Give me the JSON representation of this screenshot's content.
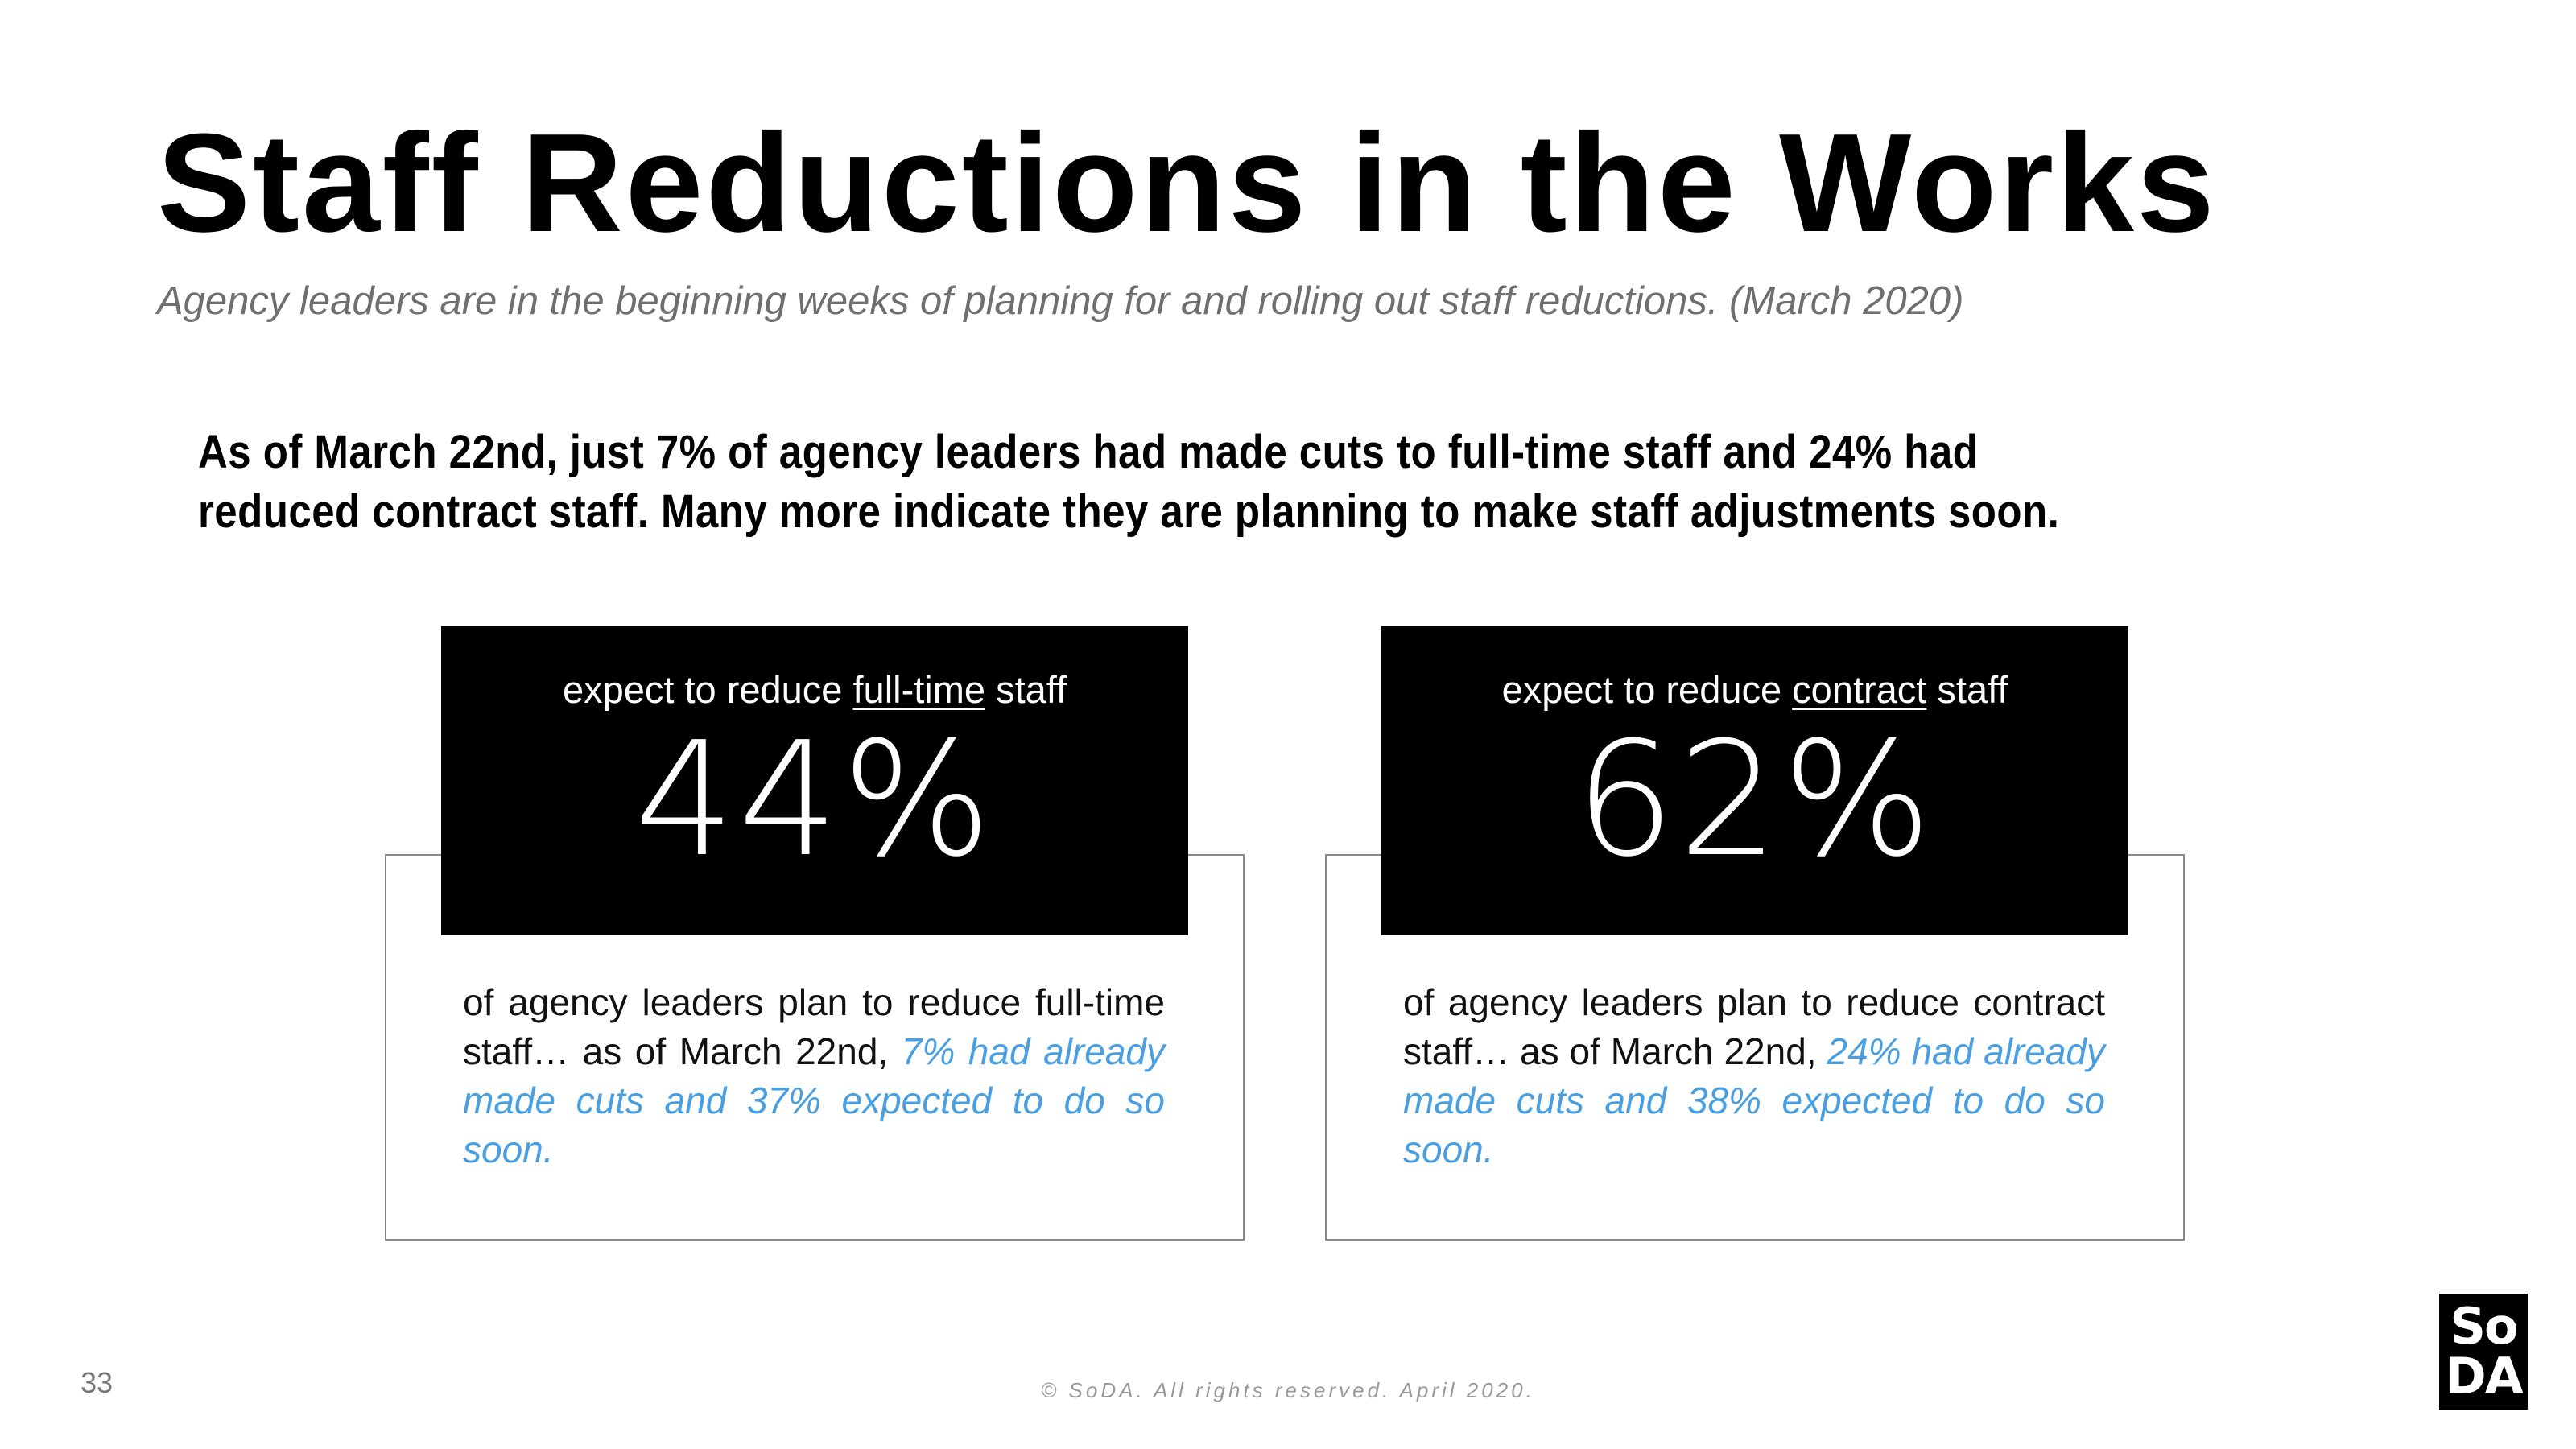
{
  "header": {
    "title": "Staff Reductions in the Works",
    "subtitle": "Agency leaders are in the beginning weeks of planning for and rolling out staff reductions. (March 2020)"
  },
  "lead": {
    "line1": "As of March 22nd, just 7% of agency leaders had made cuts to full-time staff and 24% had",
    "line2": "reduced contract staff.  Many more indicate they are planning to make staff adjustments soon."
  },
  "cards": [
    {
      "label_before": "expect to reduce ",
      "label_underlined": "full-time",
      "label_after": " staff",
      "value": "44%",
      "desc_plain": "of agency leaders plan to reduce full-time staff… as of March 22nd, ",
      "desc_highlight": "7% had already made cuts and 37% expected to do so soon."
    },
    {
      "label_before": "expect to reduce ",
      "label_underlined": "contract",
      "label_after": " staff",
      "value": "62%",
      "desc_plain": "of agency leaders plan to reduce contract staff… as of March 22nd, ",
      "desc_highlight": "24% had already made cuts and 38% expected to do so soon."
    }
  ],
  "footer": {
    "page_number": "33",
    "copyright": "© SoDA. All rights reserved. April 2020.",
    "logo_top": "So",
    "logo_bottom": "DA"
  },
  "colors": {
    "highlight": "#4a9fe0",
    "subtitle": "#6f6f6f"
  }
}
